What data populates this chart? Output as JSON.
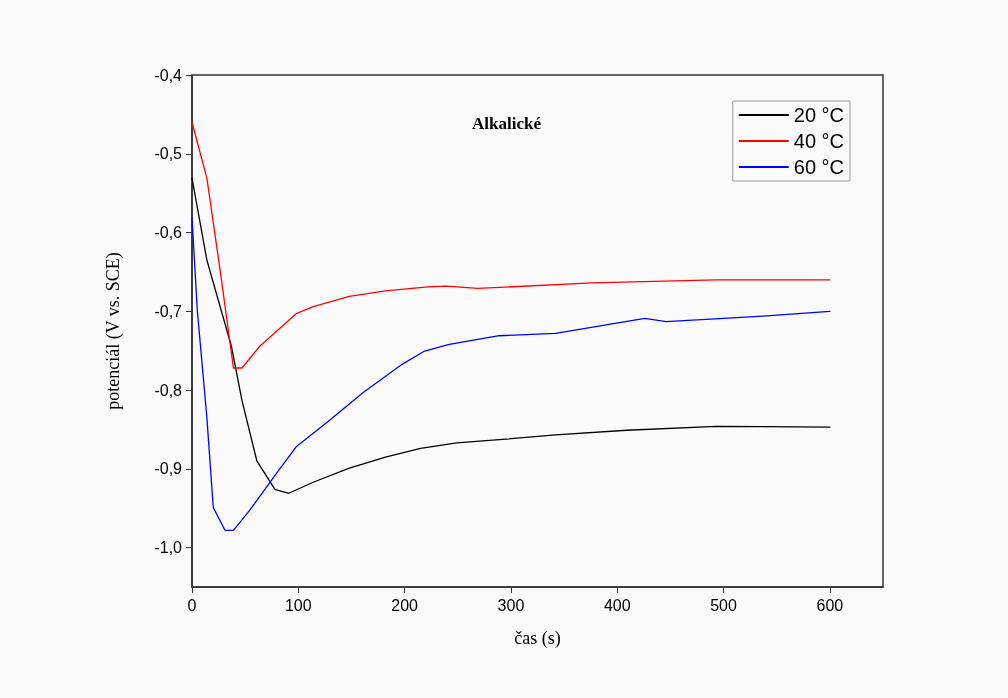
{
  "chart_data": {
    "type": "line",
    "xlabel": "čas (s)",
    "ylabel": "potenciál (V vs. SCE)",
    "annotations": [
      "Alkalické"
    ],
    "xlim": [
      0,
      650
    ],
    "xticks": [
      0,
      100,
      200,
      300,
      400,
      500,
      600
    ],
    "ylim": [
      -1.05,
      -0.4
    ],
    "yticks": [
      {
        "value": -1.0,
        "label": "-1,0"
      },
      {
        "value": -0.9,
        "label": "-0,9"
      },
      {
        "value": -0.8,
        "label": "-0,8"
      },
      {
        "value": -0.7,
        "label": "-0,7"
      },
      {
        "value": -0.6,
        "label": "-0,6"
      },
      {
        "value": -0.5,
        "label": "-0,5"
      },
      {
        "value": -0.4,
        "label": "-0,4"
      }
    ],
    "grid": false,
    "legend": "top right",
    "marker": "none",
    "line_style": "solid",
    "series": [
      {
        "name": "20 °C",
        "color": "#000000",
        "x": [
          0,
          14,
          37,
          47,
          61,
          78,
          91,
          114,
          148,
          182,
          215,
          249,
          289,
          342,
          409,
          493,
          600
        ],
        "values": [
          -0.531,
          -0.635,
          -0.744,
          -0.813,
          -0.89,
          -0.926,
          -0.931,
          -0.917,
          -0.899,
          -0.885,
          -0.874,
          -0.867,
          -0.863,
          -0.857,
          -0.851,
          -0.846,
          -0.847
        ]
      },
      {
        "name": "40 °C",
        "color": "#ff0000",
        "x": [
          0,
          14,
          27,
          39,
          47,
          64,
          98,
          114,
          148,
          182,
          222,
          239,
          269,
          376,
          493,
          600
        ],
        "values": [
          -0.46,
          -0.531,
          -0.653,
          -0.772,
          -0.772,
          -0.744,
          -0.703,
          -0.694,
          -0.681,
          -0.674,
          -0.669,
          -0.668,
          -0.671,
          -0.664,
          -0.66,
          -0.66
        ]
      },
      {
        "name": "60 °C",
        "color": "#0000ff",
        "x": [
          0,
          5,
          14,
          20,
          31,
          39,
          54,
          81,
          98,
          128,
          161,
          198,
          218,
          242,
          289,
          342,
          426,
          446,
          500,
          537,
          600
        ],
        "values": [
          -0.581,
          -0.699,
          -0.835,
          -0.949,
          -0.978,
          -0.978,
          -0.953,
          -0.903,
          -0.872,
          -0.84,
          -0.803,
          -0.767,
          -0.751,
          -0.742,
          -0.731,
          -0.728,
          -0.709,
          -0.713,
          -0.709,
          -0.706,
          -0.7
        ]
      }
    ]
  }
}
